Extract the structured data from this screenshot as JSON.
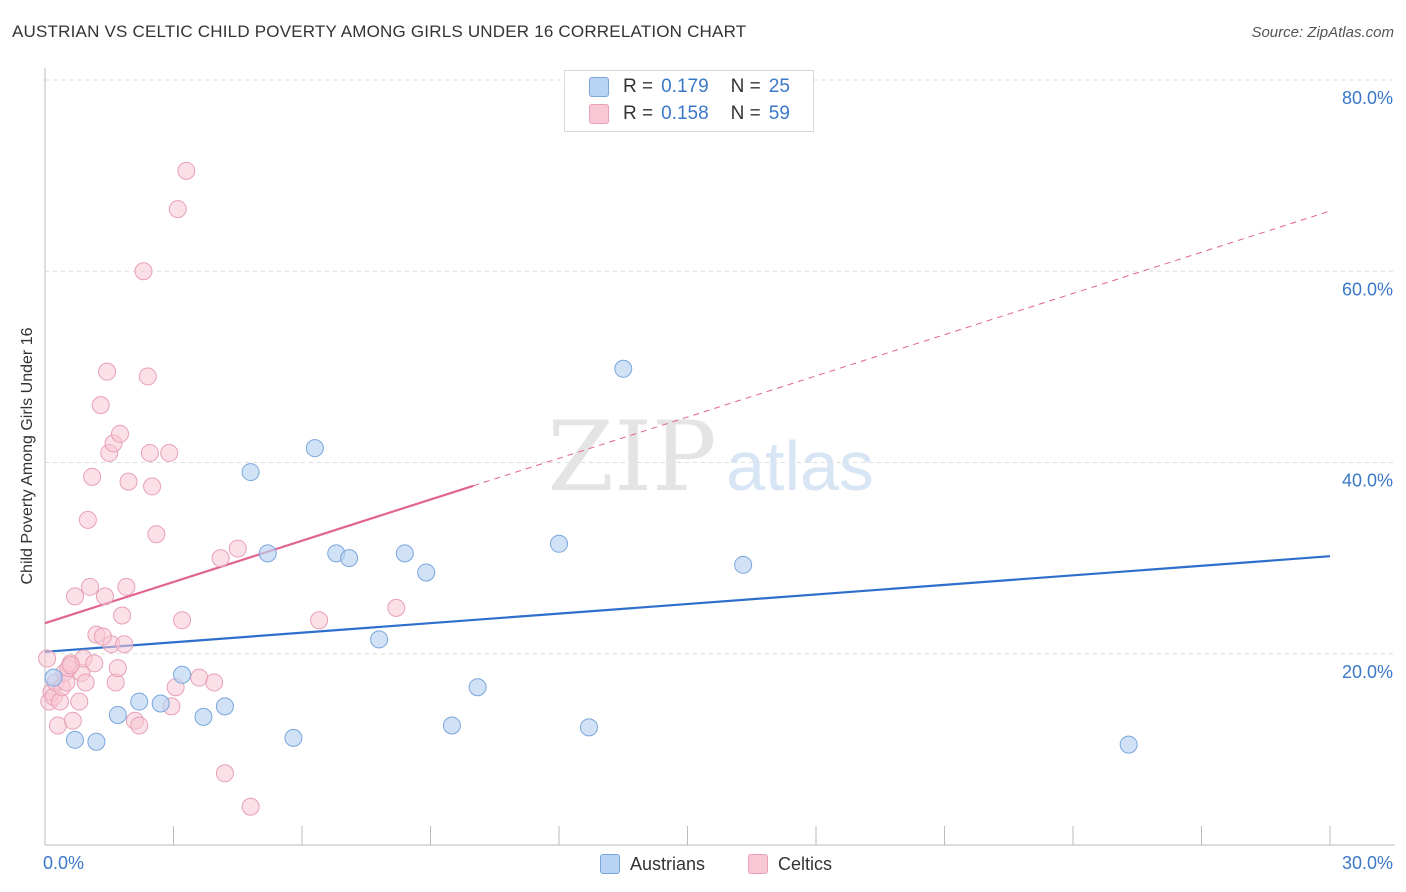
{
  "title": "AUSTRIAN VS CELTIC CHILD POVERTY AMONG GIRLS UNDER 16 CORRELATION CHART",
  "source": "Source: ZipAtlas.com",
  "watermark": {
    "zip": "ZIP",
    "atlas": "atlas"
  },
  "legend": {
    "rows": [
      {
        "r_label": "R =",
        "r_value": "0.179",
        "n_label": "N =",
        "n_value": "25"
      },
      {
        "r_label": "R =",
        "r_value": "0.158",
        "n_label": "N =",
        "n_value": "59"
      }
    ]
  },
  "bottom_legend": {
    "austrians": "Austrians",
    "celtics": "Celtics"
  },
  "colors": {
    "austrians_fill": "#b8d3f3",
    "austrians_stroke": "#7aa6dc",
    "austrians_line": "#2f6fcc",
    "celtics_fill": "#f8c6d5",
    "celtics_stroke": "#e8a0b6",
    "celtics_line": "#e0648e",
    "tick_label": "#3b78c8",
    "grid": "#dedede"
  },
  "chart_data": {
    "type": "scatter",
    "title": "AUSTRIAN VS CELTIC CHILD POVERTY AMONG GIRLS UNDER 16 CORRELATION CHART",
    "xlabel": "",
    "ylabel": "Child Poverty Among Girls Under 16",
    "xlim": [
      0,
      30
    ],
    "ylim": [
      0,
      80
    ],
    "x_tick_labels": {
      "min": "0.0%",
      "max": "30.0%"
    },
    "y_ticks": [
      {
        "value": 20,
        "label": "20.0%"
      },
      {
        "value": 40,
        "label": "40.0%"
      },
      {
        "value": 60,
        "label": "60.0%"
      },
      {
        "value": 80,
        "label": "80.0%"
      }
    ],
    "series": [
      {
        "name": "Austrians",
        "r": 0.179,
        "n": 25,
        "points": [
          [
            0.2,
            17.5
          ],
          [
            0.7,
            11
          ],
          [
            1.2,
            10.8
          ],
          [
            1.7,
            13.6
          ],
          [
            2.2,
            15
          ],
          [
            2.7,
            14.8
          ],
          [
            3.2,
            17.8
          ],
          [
            3.7,
            13.4
          ],
          [
            4.2,
            14.5
          ],
          [
            4.8,
            39
          ],
          [
            5.2,
            30.5
          ],
          [
            5.8,
            11.2
          ],
          [
            6.3,
            41.5
          ],
          [
            6.8,
            30.5
          ],
          [
            7.1,
            30
          ],
          [
            7.8,
            21.5
          ],
          [
            8.4,
            30.5
          ],
          [
            8.9,
            28.5
          ],
          [
            9.5,
            12.5
          ],
          [
            10.1,
            16.5
          ],
          [
            12,
            31.5
          ],
          [
            12.7,
            12.3
          ],
          [
            13.5,
            49.8
          ],
          [
            16.3,
            29.3
          ],
          [
            25.3,
            10.5
          ]
        ],
        "trend": {
          "x0": 0,
          "y0": 20.2,
          "x1": 30,
          "y1": 30.2
        }
      },
      {
        "name": "Celtics",
        "r": 0.158,
        "n": 59,
        "points": [
          [
            0.05,
            19.5
          ],
          [
            0.1,
            15
          ],
          [
            0.15,
            16
          ],
          [
            0.2,
            15.5
          ],
          [
            0.25,
            17
          ],
          [
            0.3,
            12.5
          ],
          [
            0.35,
            15
          ],
          [
            0.4,
            16.5
          ],
          [
            0.45,
            18
          ],
          [
            0.5,
            17
          ],
          [
            0.55,
            18.5
          ],
          [
            0.6,
            19
          ],
          [
            0.65,
            13
          ],
          [
            0.7,
            26
          ],
          [
            0.8,
            15
          ],
          [
            0.85,
            18
          ],
          [
            0.9,
            19.5
          ],
          [
            0.95,
            17
          ],
          [
            1.0,
            34
          ],
          [
            1.05,
            27
          ],
          [
            1.1,
            38.5
          ],
          [
            1.15,
            19
          ],
          [
            1.2,
            22
          ],
          [
            1.3,
            46
          ],
          [
            1.4,
            26
          ],
          [
            1.45,
            49.5
          ],
          [
            1.5,
            41
          ],
          [
            1.55,
            21
          ],
          [
            1.6,
            42
          ],
          [
            1.65,
            17
          ],
          [
            1.7,
            18.5
          ],
          [
            1.75,
            43
          ],
          [
            1.8,
            24
          ],
          [
            1.85,
            21
          ],
          [
            1.9,
            27
          ],
          [
            1.95,
            38
          ],
          [
            2.1,
            13
          ],
          [
            2.2,
            12.5
          ],
          [
            2.3,
            60
          ],
          [
            2.4,
            49
          ],
          [
            2.45,
            41
          ],
          [
            2.5,
            37.5
          ],
          [
            2.6,
            32.5
          ],
          [
            2.9,
            41
          ],
          [
            2.95,
            14.5
          ],
          [
            3.05,
            16.5
          ],
          [
            3.1,
            66.5
          ],
          [
            3.2,
            23.5
          ],
          [
            3.3,
            70.5
          ],
          [
            3.6,
            17.5
          ],
          [
            3.95,
            17
          ],
          [
            4.1,
            30
          ],
          [
            4.2,
            7.5
          ],
          [
            4.5,
            31
          ],
          [
            4.8,
            4
          ],
          [
            6.4,
            23.5
          ],
          [
            8.2,
            24.8
          ],
          [
            0.6,
            18.8
          ],
          [
            1.35,
            21.8
          ]
        ],
        "trend": {
          "x0": 0,
          "y0": 23.2,
          "x1": 30,
          "y1": 66.3
        },
        "trend_solid_until_x": 10
      }
    ]
  }
}
